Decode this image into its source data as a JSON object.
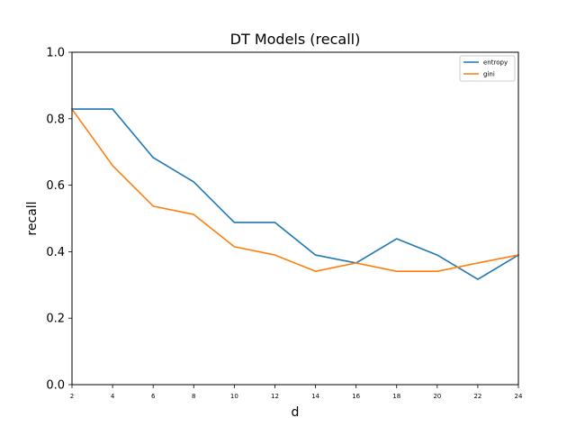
{
  "chart_data": {
    "type": "line",
    "title": "DT Models (recall)",
    "xlabel": "d",
    "ylabel": "recall",
    "x": [
      2,
      4,
      6,
      8,
      10,
      12,
      14,
      16,
      18,
      20,
      22,
      24
    ],
    "xticks": [
      "2",
      "4",
      "6",
      "8",
      "10",
      "12",
      "14",
      "16",
      "18",
      "20",
      "22",
      "24"
    ],
    "yticks": [
      "0.0",
      "0.2",
      "0.4",
      "0.6",
      "0.8",
      "1.0"
    ],
    "xlim": [
      2,
      24
    ],
    "ylim": [
      0,
      1
    ],
    "grid": false,
    "legend_position": "top-right",
    "series": [
      {
        "name": "entropy",
        "color": "#1f77b4",
        "values": [
          0.829,
          0.829,
          0.683,
          0.61,
          0.488,
          0.488,
          0.39,
          0.366,
          0.439,
          0.39,
          0.317,
          0.39
        ]
      },
      {
        "name": "gini",
        "color": "#ff7f0e",
        "values": [
          0.829,
          0.659,
          0.537,
          0.512,
          0.415,
          0.39,
          0.341,
          0.366,
          0.341,
          0.341,
          0.366,
          0.39
        ]
      }
    ]
  }
}
